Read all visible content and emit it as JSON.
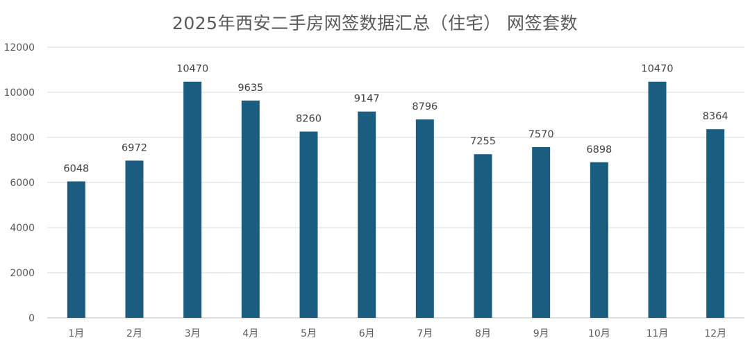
{
  "chart_data": {
    "type": "bar",
    "title": "2025年西安二手房网签数据汇总（住宅） 网签套数",
    "xlabel": "",
    "ylabel": "",
    "categories": [
      "1月",
      "2月",
      "3月",
      "4月",
      "5月",
      "6月",
      "7月",
      "8月",
      "9月",
      "10月",
      "11月",
      "12月"
    ],
    "values": [
      6048,
      6972,
      10470,
      9635,
      8260,
      9147,
      8796,
      7255,
      7570,
      6898,
      10470,
      8364
    ],
    "value_labels": [
      "6048",
      "6972",
      "10470",
      "9635",
      "8260",
      "9147",
      "8796",
      "7255",
      "7570",
      "6898",
      "10470",
      "8364"
    ],
    "ylim": [
      0,
      12000
    ],
    "yticks": [
      0,
      2000,
      4000,
      6000,
      8000,
      10000,
      12000
    ],
    "ytick_labels": [
      "0",
      "2000",
      "4000",
      "6000",
      "8000",
      "10000",
      "12000"
    ],
    "grid": true,
    "legend": "none",
    "colors": {
      "bar": "#1A5D80",
      "grid": "#D9D9D9",
      "axis": "#BFBFBF",
      "title": "#595959",
      "tick_text": "#595959",
      "data_label": "#404040"
    }
  }
}
